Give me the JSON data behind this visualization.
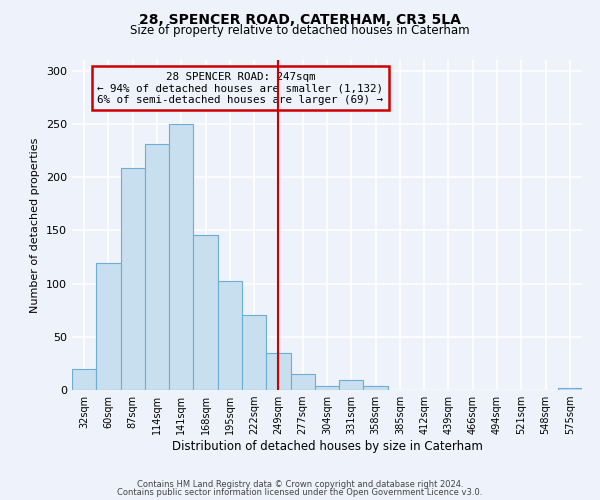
{
  "title": "28, SPENCER ROAD, CATERHAM, CR3 5LA",
  "subtitle": "Size of property relative to detached houses in Caterham",
  "xlabel": "Distribution of detached houses by size in Caterham",
  "ylabel": "Number of detached properties",
  "categories": [
    "32sqm",
    "60sqm",
    "87sqm",
    "114sqm",
    "141sqm",
    "168sqm",
    "195sqm",
    "222sqm",
    "249sqm",
    "277sqm",
    "304sqm",
    "331sqm",
    "358sqm",
    "385sqm",
    "412sqm",
    "439sqm",
    "466sqm",
    "494sqm",
    "521sqm",
    "548sqm",
    "575sqm"
  ],
  "values": [
    20,
    119,
    209,
    231,
    250,
    146,
    102,
    70,
    35,
    15,
    4,
    9,
    4,
    0,
    0,
    0,
    0,
    0,
    0,
    0,
    2
  ],
  "bar_color": "#c8dff0",
  "bar_edge_color": "#6aaed6",
  "vline_x_idx": 8,
  "vline_color": "#cc0000",
  "annotation_title": "28 SPENCER ROAD: 247sqm",
  "annotation_line1": "← 94% of detached houses are smaller (1,132)",
  "annotation_line2": "6% of semi-detached houses are larger (69) →",
  "annotation_box_color": "#cc0000",
  "ylim": [
    0,
    310
  ],
  "yticks": [
    0,
    50,
    100,
    150,
    200,
    250,
    300
  ],
  "footer1": "Contains HM Land Registry data © Crown copyright and database right 2024.",
  "footer2": "Contains public sector information licensed under the Open Government Licence v3.0.",
  "background_color": "#eef2fa",
  "grid_color": "#ffffff"
}
